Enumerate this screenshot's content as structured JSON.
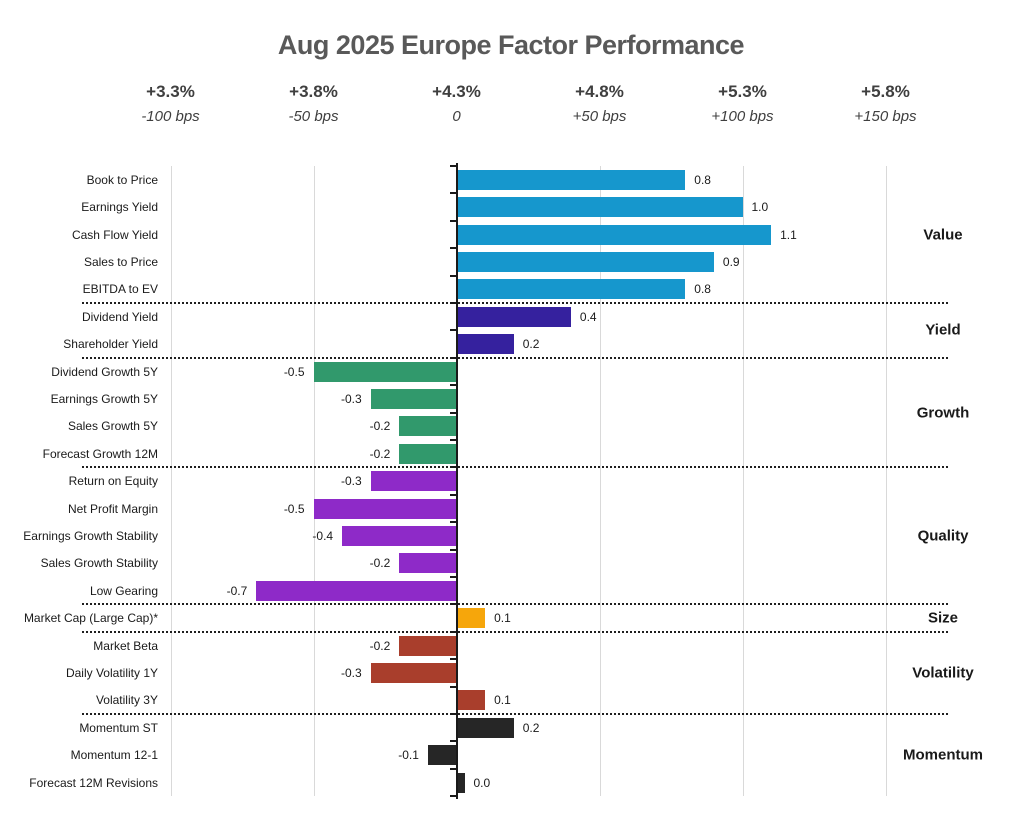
{
  "title": "Aug 2025 Europe Factor Performance",
  "chart_data": {
    "type": "bar",
    "orientation": "horizontal",
    "title": "Aug 2025 Europe Factor Performance",
    "xlim": [
      -1.0,
      1.5
    ],
    "grid": "vertical-lines-on",
    "x_axis_top_ticks": [
      {
        "pct": "+3.3%",
        "bps": "-100 bps",
        "value": -1.0
      },
      {
        "pct": "+3.8%",
        "bps": "-50 bps",
        "value": -0.5
      },
      {
        "pct": "+4.3%",
        "bps": "0",
        "value": 0.0
      },
      {
        "pct": "+4.8%",
        "bps": "+50 bps",
        "value": 0.5
      },
      {
        "pct": "+5.3%",
        "bps": "+100 bps",
        "value": 1.0
      },
      {
        "pct": "+5.8%",
        "bps": "+150 bps",
        "value": 1.5
      }
    ],
    "sections": [
      {
        "name": "Value",
        "color": "#1697CD",
        "bars": [
          {
            "label": "Book to Price",
            "value": 0.8
          },
          {
            "label": "Earnings Yield",
            "value": 1.0
          },
          {
            "label": "Cash Flow Yield",
            "value": 1.1
          },
          {
            "label": "Sales to Price",
            "value": 0.9
          },
          {
            "label": "EBITDA to EV",
            "value": 0.8
          }
        ]
      },
      {
        "name": "Yield",
        "color": "#35219E",
        "bars": [
          {
            "label": "Dividend Yield",
            "value": 0.4
          },
          {
            "label": "Shareholder Yield",
            "value": 0.2
          }
        ]
      },
      {
        "name": "Growth",
        "color": "#31996C",
        "bars": [
          {
            "label": "Dividend Growth 5Y",
            "value": -0.5
          },
          {
            "label": "Earnings Growth 5Y",
            "value": -0.3
          },
          {
            "label": "Sales Growth 5Y",
            "value": -0.2
          },
          {
            "label": "Forecast Growth 12M",
            "value": -0.2
          }
        ]
      },
      {
        "name": "Quality",
        "color": "#8E2AC8",
        "bars": [
          {
            "label": "Return on Equity",
            "value": -0.3
          },
          {
            "label": "Net Profit Margin",
            "value": -0.5
          },
          {
            "label": "Earnings Growth Stability",
            "value": -0.4
          },
          {
            "label": "Sales Growth Stability",
            "value": -0.2
          },
          {
            "label": "Low Gearing",
            "value": -0.7
          }
        ]
      },
      {
        "name": "Size",
        "color": "#F6A60B",
        "bars": [
          {
            "label": "Market Cap (Large Cap)*",
            "value": 0.1
          }
        ]
      },
      {
        "name": "Volatility",
        "color": "#A93E2C",
        "bars": [
          {
            "label": "Market Beta",
            "value": -0.2
          },
          {
            "label": "Daily Volatility 1Y",
            "value": -0.3
          },
          {
            "label": "Volatility 3Y",
            "value": 0.1
          }
        ]
      },
      {
        "name": "Momentum",
        "color": "#262626",
        "bars": [
          {
            "label": "Momentum ST",
            "value": 0.2
          },
          {
            "label": "Momentum 12-1",
            "value": -0.1
          },
          {
            "label": "Forecast 12M Revisions",
            "value": 0.0
          }
        ]
      }
    ]
  },
  "colors": {
    "title_text": "#595959",
    "axis_label_text": "#3f3f3f",
    "gridline": "#d9d9d9",
    "zero_axis": "#1a1a1a",
    "separator_dots": "#1f1f1f",
    "label_text": "#1a1a1a"
  }
}
